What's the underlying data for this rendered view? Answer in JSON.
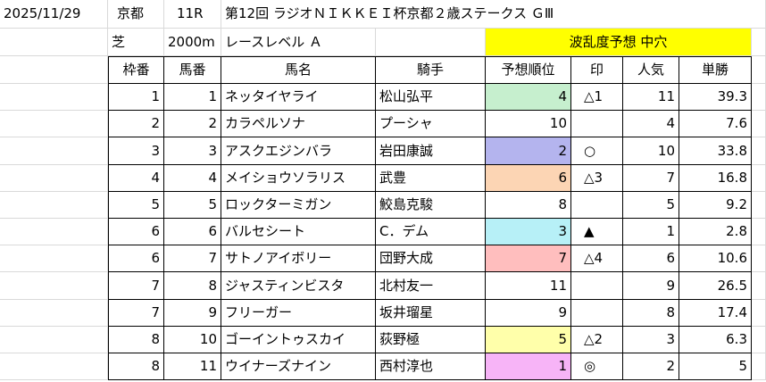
{
  "race": {
    "date": "2025/11/29",
    "venue": "京都",
    "race_no": "11R",
    "title": "第12回 ラジオＮＩＫＫＥＩ杯京都２歳ステークス ＧⅢ",
    "surface": "芝",
    "distance": "2000m",
    "level": "レースレベル Ａ",
    "upset_forecast": "波乱度予想 中穴"
  },
  "table": {
    "headers": [
      "枠番",
      "馬番",
      "馬名",
      "騎手",
      "予想順位",
      "印",
      "人気",
      "単勝"
    ],
    "rows": [
      {
        "waku": "1",
        "umaban": "1",
        "horse": "ネッタイヤライ",
        "jockey": "松山弘平",
        "rank": "4",
        "mark": "△1",
        "pop": "11",
        "odds": "39.3",
        "rank_color": "#c6efce"
      },
      {
        "waku": "2",
        "umaban": "2",
        "horse": "カラペルソナ",
        "jockey": "プーシャ",
        "rank": "10",
        "mark": "",
        "pop": "4",
        "odds": "7.6",
        "rank_color": ""
      },
      {
        "waku": "3",
        "umaban": "3",
        "horse": "アスクエジンバラ",
        "jockey": "岩田康誠",
        "rank": "2",
        "mark": "○",
        "pop": "10",
        "odds": "33.8",
        "rank_color": "#b4b4ee"
      },
      {
        "waku": "4",
        "umaban": "4",
        "horse": "メイショウソラリス",
        "jockey": "武豊",
        "rank": "6",
        "mark": "△3",
        "pop": "7",
        "odds": "16.8",
        "rank_color": "#fcd5b4"
      },
      {
        "waku": "5",
        "umaban": "5",
        "horse": "ロックターミガン",
        "jockey": "鮫島克駿",
        "rank": "8",
        "mark": "",
        "pop": "5",
        "odds": "9.2",
        "rank_color": ""
      },
      {
        "waku": "6",
        "umaban": "6",
        "horse": "バルセシート",
        "jockey": "C．デム",
        "rank": "3",
        "mark": "▲",
        "pop": "1",
        "odds": "2.8",
        "rank_color": "#b7f0f7"
      },
      {
        "waku": "6",
        "umaban": "7",
        "horse": "サトノアイボリー",
        "jockey": "団野大成",
        "rank": "7",
        "mark": "△4",
        "pop": "6",
        "odds": "10.6",
        "rank_color": "#ffbebe"
      },
      {
        "waku": "7",
        "umaban": "8",
        "horse": "ジャスティンビスタ",
        "jockey": "北村友一",
        "rank": "11",
        "mark": "",
        "pop": "9",
        "odds": "26.5",
        "rank_color": ""
      },
      {
        "waku": "7",
        "umaban": "9",
        "horse": "フリーガー",
        "jockey": "坂井瑠星",
        "rank": "9",
        "mark": "",
        "pop": "8",
        "odds": "17.4",
        "rank_color": ""
      },
      {
        "waku": "8",
        "umaban": "10",
        "horse": "ゴーイントゥスカイ",
        "jockey": "荻野極",
        "rank": "5",
        "mark": "△2",
        "pop": "3",
        "odds": "6.3",
        "rank_color": "#ffffaa"
      },
      {
        "waku": "8",
        "umaban": "11",
        "horse": "ウイナーズナイン",
        "jockey": "西村淳也",
        "rank": "1",
        "mark": "◎",
        "pop": "2",
        "odds": "5",
        "rank_color": "#f7b4f7"
      }
    ]
  },
  "colors": {
    "highlight_yellow": "#ffff00",
    "grid_line": "#d9d9d9",
    "table_border": "#000000"
  }
}
